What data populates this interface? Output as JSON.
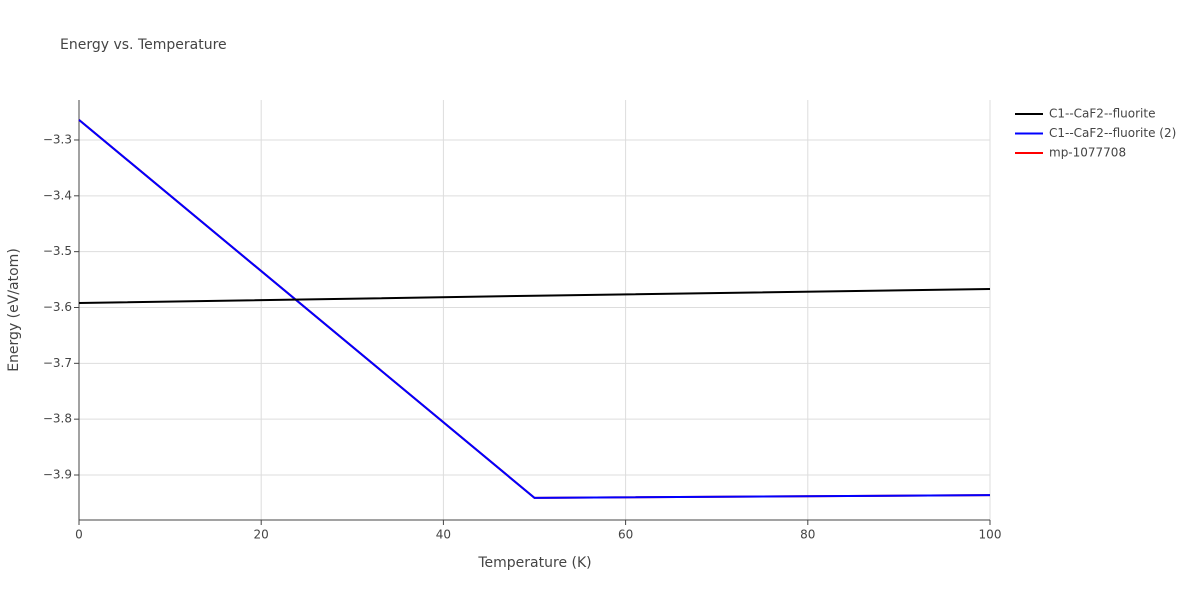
{
  "chart_data": {
    "type": "line",
    "title": "Energy vs. Temperature",
    "x_label": "Temperature (K)",
    "y_label": "Energy (eV/atom)",
    "x": [
      0,
      50,
      100
    ],
    "series": [
      {
        "name": "C1--CaF2--fluorite",
        "color": "#000000",
        "values": [
          -3.592,
          -3.579,
          -3.567
        ]
      },
      {
        "name": "C1--CaF2--fluorite (2)",
        "color": "#0000ff",
        "values": [
          -3.264,
          -3.941,
          -3.936
        ]
      },
      {
        "name": "mp-1077708",
        "color": "#ff0000",
        "values": [
          -3.264,
          -3.941,
          -3.936
        ]
      }
    ],
    "xlim": [
      0,
      100
    ],
    "ylim": [
      -3.9806,
      -3.2284
    ],
    "xticks": [
      0,
      20,
      40,
      60,
      80,
      100
    ],
    "yticks": [
      {
        "value": -3.9,
        "label": "−3.9"
      },
      {
        "value": -3.8,
        "label": "−3.8"
      },
      {
        "value": -3.7,
        "label": "−3.7"
      },
      {
        "value": -3.6,
        "label": "−3.6"
      },
      {
        "value": -3.5,
        "label": "−3.5"
      },
      {
        "value": -3.4,
        "label": "−3.4"
      },
      {
        "value": -3.3,
        "label": "−3.3"
      }
    ],
    "grid": true,
    "legend": "right"
  }
}
